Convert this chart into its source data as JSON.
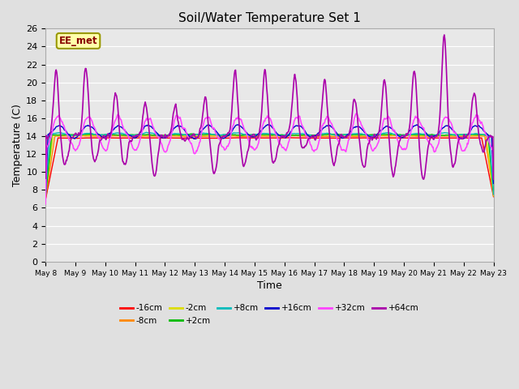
{
  "title": "Soil/Water Temperature Set 1",
  "xlabel": "Time",
  "ylabel": "Temperature (C)",
  "ylim": [
    0,
    26
  ],
  "yticks": [
    0,
    2,
    4,
    6,
    8,
    10,
    12,
    14,
    16,
    18,
    20,
    22,
    24,
    26
  ],
  "x_tick_labels": [
    "May 8",
    "May 9",
    "May 10",
    "May 11",
    "May 12",
    "May 13",
    "May 14",
    "May 15",
    "May 16",
    "May 17",
    "May 18",
    "May 19",
    "May 20",
    "May 21",
    "May 22",
    "May 23"
  ],
  "background_color": "#e0e0e0",
  "plot_bg_color": "#e8e8e8",
  "series": [
    {
      "label": "-16cm",
      "color": "#ff0000"
    },
    {
      "label": "-8cm",
      "color": "#ff8800"
    },
    {
      "label": "-2cm",
      "color": "#dddd00"
    },
    {
      "label": "+2cm",
      "color": "#00bb00"
    },
    {
      "label": "+8cm",
      "color": "#00bbbb"
    },
    {
      "label": "+16cm",
      "color": "#0000cc"
    },
    {
      "label": "+32cm",
      "color": "#ff44ff"
    },
    {
      "label": "+64cm",
      "color": "#aa00aa"
    }
  ],
  "annotation_text": "EE_met",
  "base_temp": 13.9,
  "grid_color": "#ffffff",
  "fig_bg": "#e0e0e0"
}
